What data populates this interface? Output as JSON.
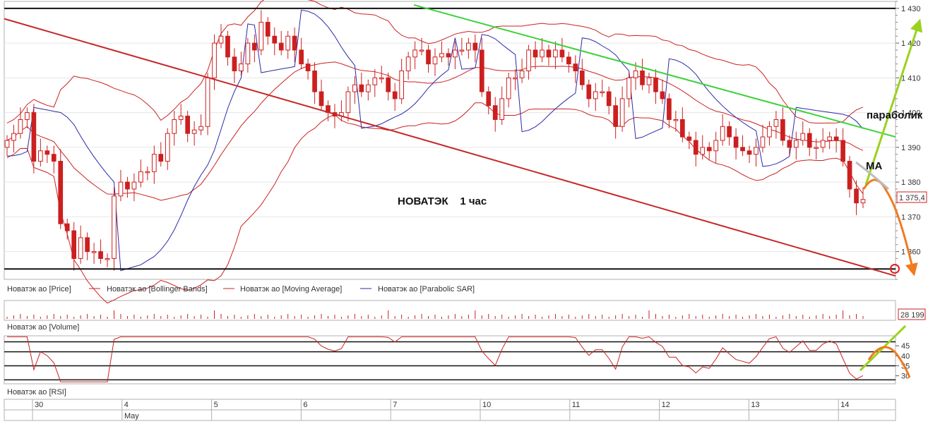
{
  "chart_data": {
    "type": "candlestick",
    "title": "НОВАТЭК    1 час",
    "price_axis": {
      "ylim": [
        1352,
        1432
      ],
      "ticks": [
        1430,
        1420,
        1410,
        1400,
        1390,
        1380,
        1370,
        1360
      ],
      "tick_labels": [
        "1 430",
        "1 420",
        "1 410",
        "1 400",
        "1 390",
        "1 380",
        "1 370",
        "1 360"
      ]
    },
    "current_price": "1 375,4",
    "volume_value": "28 199",
    "rsi_axis": {
      "ylim": [
        26,
        50
      ],
      "ticks": [
        45,
        40,
        35,
        30
      ],
      "tick_labels": [
        "45",
        "40",
        "35",
        "30"
      ],
      "levels": [
        47,
        42,
        35,
        28
      ]
    },
    "horizontal_levels": [
      1430,
      1355
    ],
    "date_labels": [
      "30",
      "4",
      "5",
      "6",
      "7",
      "10",
      "11",
      "12",
      "13",
      "14"
    ],
    "month_label": "May",
    "legend": {
      "price": "Новатэк ао [Price]",
      "bollinger": "Новатэк ао [Bollinger Bands]",
      "ma": "Новатэк ао [Moving Average]",
      "sar": "Новатэк ао [Parabolic SAR]"
    },
    "volume_label": "Новатэк ао [Volume]",
    "rsi_label": "Новатэк ао [RSI]",
    "annotations": {
      "parabolic": "параболик",
      "ma": "МА"
    },
    "closes": [
      1392,
      1394,
      1398,
      1400,
      1386,
      1389,
      1388,
      1386,
      1368,
      1366,
      1358,
      1364,
      1360,
      1360,
      1358,
      1358,
      1376,
      1380,
      1378,
      1380,
      1383,
      1383,
      1388,
      1386,
      1394,
      1398,
      1399,
      1394,
      1395,
      1396,
      1410,
      1420,
      1422,
      1416,
      1412,
      1414,
      1420,
      1418,
      1426,
      1422,
      1420,
      1418,
      1422,
      1418,
      1414,
      1412,
      1406,
      1402,
      1400,
      1399,
      1400,
      1406,
      1408,
      1406,
      1408,
      1410,
      1410,
      1406,
      1404,
      1412,
      1416,
      1418,
      1418,
      1414,
      1416,
      1417,
      1416,
      1418,
      1418,
      1420,
      1418,
      1406,
      1402,
      1398,
      1404,
      1410,
      1410,
      1412,
      1418,
      1416,
      1418,
      1416,
      1418,
      1416,
      1414,
      1412,
      1408,
      1404,
      1406,
      1406,
      1402,
      1396,
      1404,
      1410,
      1412,
      1408,
      1410,
      1406,
      1404,
      1398,
      1398,
      1393,
      1392,
      1388,
      1390,
      1389,
      1392,
      1396,
      1393,
      1390,
      1389,
      1388,
      1390,
      1393,
      1396,
      1398,
      1392,
      1390,
      1392,
      1394,
      1390,
      1390,
      1392,
      1393,
      1392,
      1386,
      1378,
      1374,
      1375
    ]
  }
}
